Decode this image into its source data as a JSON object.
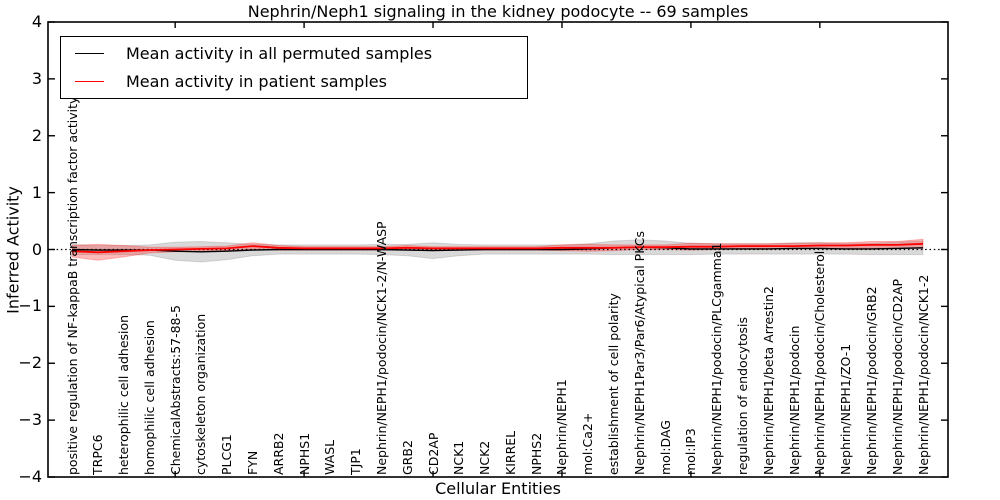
{
  "chart_data": {
    "type": "line",
    "title": "Nephrin/Neph1 signaling in the kidney podocyte -- 69 samples",
    "xlabel": "Cellular Entities",
    "ylabel": "Inferred Activity",
    "ylim": [
      -4,
      4
    ],
    "ytick_values": [
      4,
      3,
      2,
      1,
      0,
      -1,
      -2,
      -3,
      -4
    ],
    "ytick_labels": [
      "4",
      "3",
      "2",
      "1",
      "0",
      "−1",
      "−2",
      "−3",
      "−4"
    ],
    "xtick_positions": [
      5,
      10,
      15,
      20,
      25,
      30
    ],
    "grid": false,
    "legend_position": "upper left",
    "baseline": 0,
    "categories": [
      "positive regulation of NF-kappaB transcription factor activity",
      "TRPC6",
      "heterophilic cell adhesion",
      "homophilic cell adhesion",
      "ChemicalAbstracts:57-88-5",
      "cytoskeleton organization",
      "PLCG1",
      "FYN",
      "ARRB2",
      "NPHS1",
      "WASL",
      "TJP1",
      "Nephrin/NEPH1/podocin/NCK1-2/N-WASP",
      "GRB2",
      "CD2AP",
      "NCK1",
      "NCK2",
      "KIRREL",
      "NPHS2",
      "Nephrin/NEPH1",
      "mol:Ca2+",
      "establishment of cell polarity",
      "Nephrin/NEPH1Par3/Par6/Atypical PKCs",
      "mol:DAG",
      "mol:IP3",
      "Nephrin/NEPH1/podocin/PLCgamma1",
      "regulation of endocytosis",
      "Nephrin/NEPH1/beta Arrestin2",
      "Nephrin/NEPH1/podocin",
      "Nephrin/NEPH1/podocin/Cholesterol",
      "Nephrin/NEPH1/ZO-1",
      "Nephrin/NEPH1/podocin/GRB2",
      "Nephrin/NEPH1/podocin/CD2AP",
      "Nephrin/NEPH1/podocin/NCK1-2"
    ],
    "series": [
      {
        "name": "Mean activity in all permuted samples",
        "color": "#000000",
        "band_color": "rgba(130,130,130,0.30)",
        "band_edge": "rgba(0,0,0,0.12)",
        "values": [
          0.0,
          -0.01,
          -0.01,
          -0.01,
          -0.03,
          -0.04,
          -0.03,
          -0.01,
          0.0,
          0.0,
          0.0,
          0.0,
          0.0,
          -0.01,
          -0.02,
          -0.01,
          0.0,
          0.0,
          0.0,
          0.0,
          0.01,
          0.03,
          0.04,
          0.03,
          0.01,
          0.01,
          0.01,
          0.01,
          0.02,
          0.02,
          0.01,
          0.01,
          0.02,
          0.03
        ],
        "std": [
          0.09,
          0.08,
          0.08,
          0.09,
          0.16,
          0.18,
          0.15,
          0.1,
          0.08,
          0.08,
          0.08,
          0.08,
          0.09,
          0.1,
          0.14,
          0.1,
          0.08,
          0.08,
          0.08,
          0.08,
          0.09,
          0.12,
          0.13,
          0.12,
          0.1,
          0.09,
          0.09,
          0.09,
          0.1,
          0.1,
          0.09,
          0.1,
          0.11,
          0.12
        ]
      },
      {
        "name": "Mean activity in patient samples",
        "color": "#ff0000",
        "band_color": "rgba(255,60,60,0.35)",
        "band_edge": "rgba(255,0,0,0.25)",
        "values": [
          -0.03,
          -0.05,
          -0.03,
          -0.01,
          0.0,
          0.01,
          0.02,
          0.06,
          0.03,
          0.02,
          0.02,
          0.02,
          0.02,
          0.03,
          0.02,
          0.02,
          0.02,
          0.02,
          0.02,
          0.03,
          0.03,
          0.03,
          0.04,
          0.04,
          0.05,
          0.05,
          0.06,
          0.06,
          0.06,
          0.07,
          0.07,
          0.08,
          0.08,
          0.1
        ],
        "std": [
          0.1,
          0.14,
          0.1,
          0.05,
          0.04,
          0.04,
          0.04,
          0.06,
          0.04,
          0.03,
          0.03,
          0.03,
          0.03,
          0.04,
          0.03,
          0.03,
          0.03,
          0.03,
          0.03,
          0.05,
          0.06,
          0.05,
          0.04,
          0.04,
          0.06,
          0.05,
          0.04,
          0.04,
          0.05,
          0.05,
          0.05,
          0.06,
          0.06,
          0.08
        ]
      }
    ]
  },
  "legend": {
    "items": [
      {
        "label": "Mean activity in all permuted samples",
        "color": "#000000"
      },
      {
        "label": "Mean activity in patient samples",
        "color": "#ff0000"
      }
    ]
  }
}
